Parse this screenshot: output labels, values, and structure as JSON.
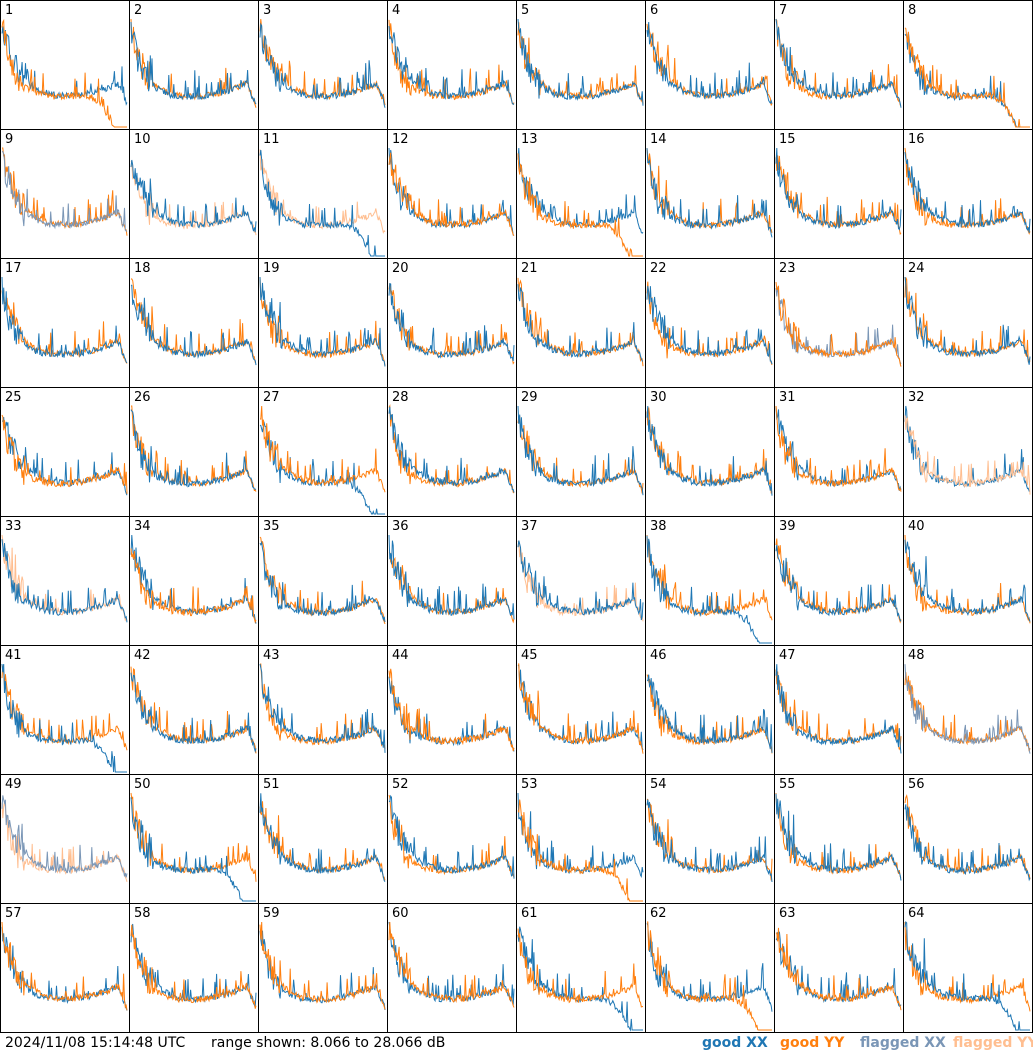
{
  "chart_data": {
    "type": "line",
    "panels_count": 64,
    "panel_labels": [
      "1",
      "2",
      "3",
      "4",
      "5",
      "6",
      "7",
      "8",
      "9",
      "10",
      "11",
      "12",
      "13",
      "14",
      "15",
      "16",
      "17",
      "18",
      "19",
      "20",
      "21",
      "22",
      "23",
      "24",
      "25",
      "26",
      "27",
      "28",
      "29",
      "30",
      "31",
      "32",
      "33",
      "34",
      "35",
      "36",
      "37",
      "38",
      "39",
      "40",
      "41",
      "42",
      "43",
      "44",
      "45",
      "46",
      "47",
      "48",
      "49",
      "50",
      "51",
      "52",
      "53",
      "54",
      "55",
      "56",
      "57",
      "58",
      "59",
      "60",
      "61",
      "62",
      "63",
      "64"
    ],
    "ylim": [
      8.066,
      28.066
    ],
    "series": [
      {
        "name": "good XX"
      },
      {
        "name": "good YY"
      },
      {
        "name": "flagged XX"
      },
      {
        "name": "flagged YY"
      }
    ],
    "colors": {
      "good_xx": "#1f77b4",
      "good_yy": "#ff7f0e",
      "flagged_xx": "#7a96b6",
      "flagged_yy": "#ffbe90"
    },
    "flagged_xx_panels": [
      9,
      23,
      48,
      49
    ],
    "flagged_yy_panels": [
      10,
      11,
      32,
      33,
      37,
      49
    ],
    "yy_dominant_panels": [
      1,
      8,
      12,
      13,
      23,
      25,
      27,
      31,
      32,
      34,
      44,
      45,
      53,
      57,
      58,
      59,
      60,
      61,
      62,
      63
    ],
    "xx_rolloff_panels": [
      8,
      11,
      27,
      38,
      41,
      50,
      61,
      64
    ],
    "yy_rolloff_panels": [
      1,
      8,
      13,
      53,
      62
    ]
  },
  "footer": {
    "timestamp": "2024/11/08 15:14:48 UTC",
    "range": "range shown: 8.066 to 28.066 dB"
  },
  "legend": {
    "good_xx": "good XX",
    "good_yy": "good YY",
    "flagged_xx": "flagged XX",
    "flagged_yy": "flagged YY"
  }
}
